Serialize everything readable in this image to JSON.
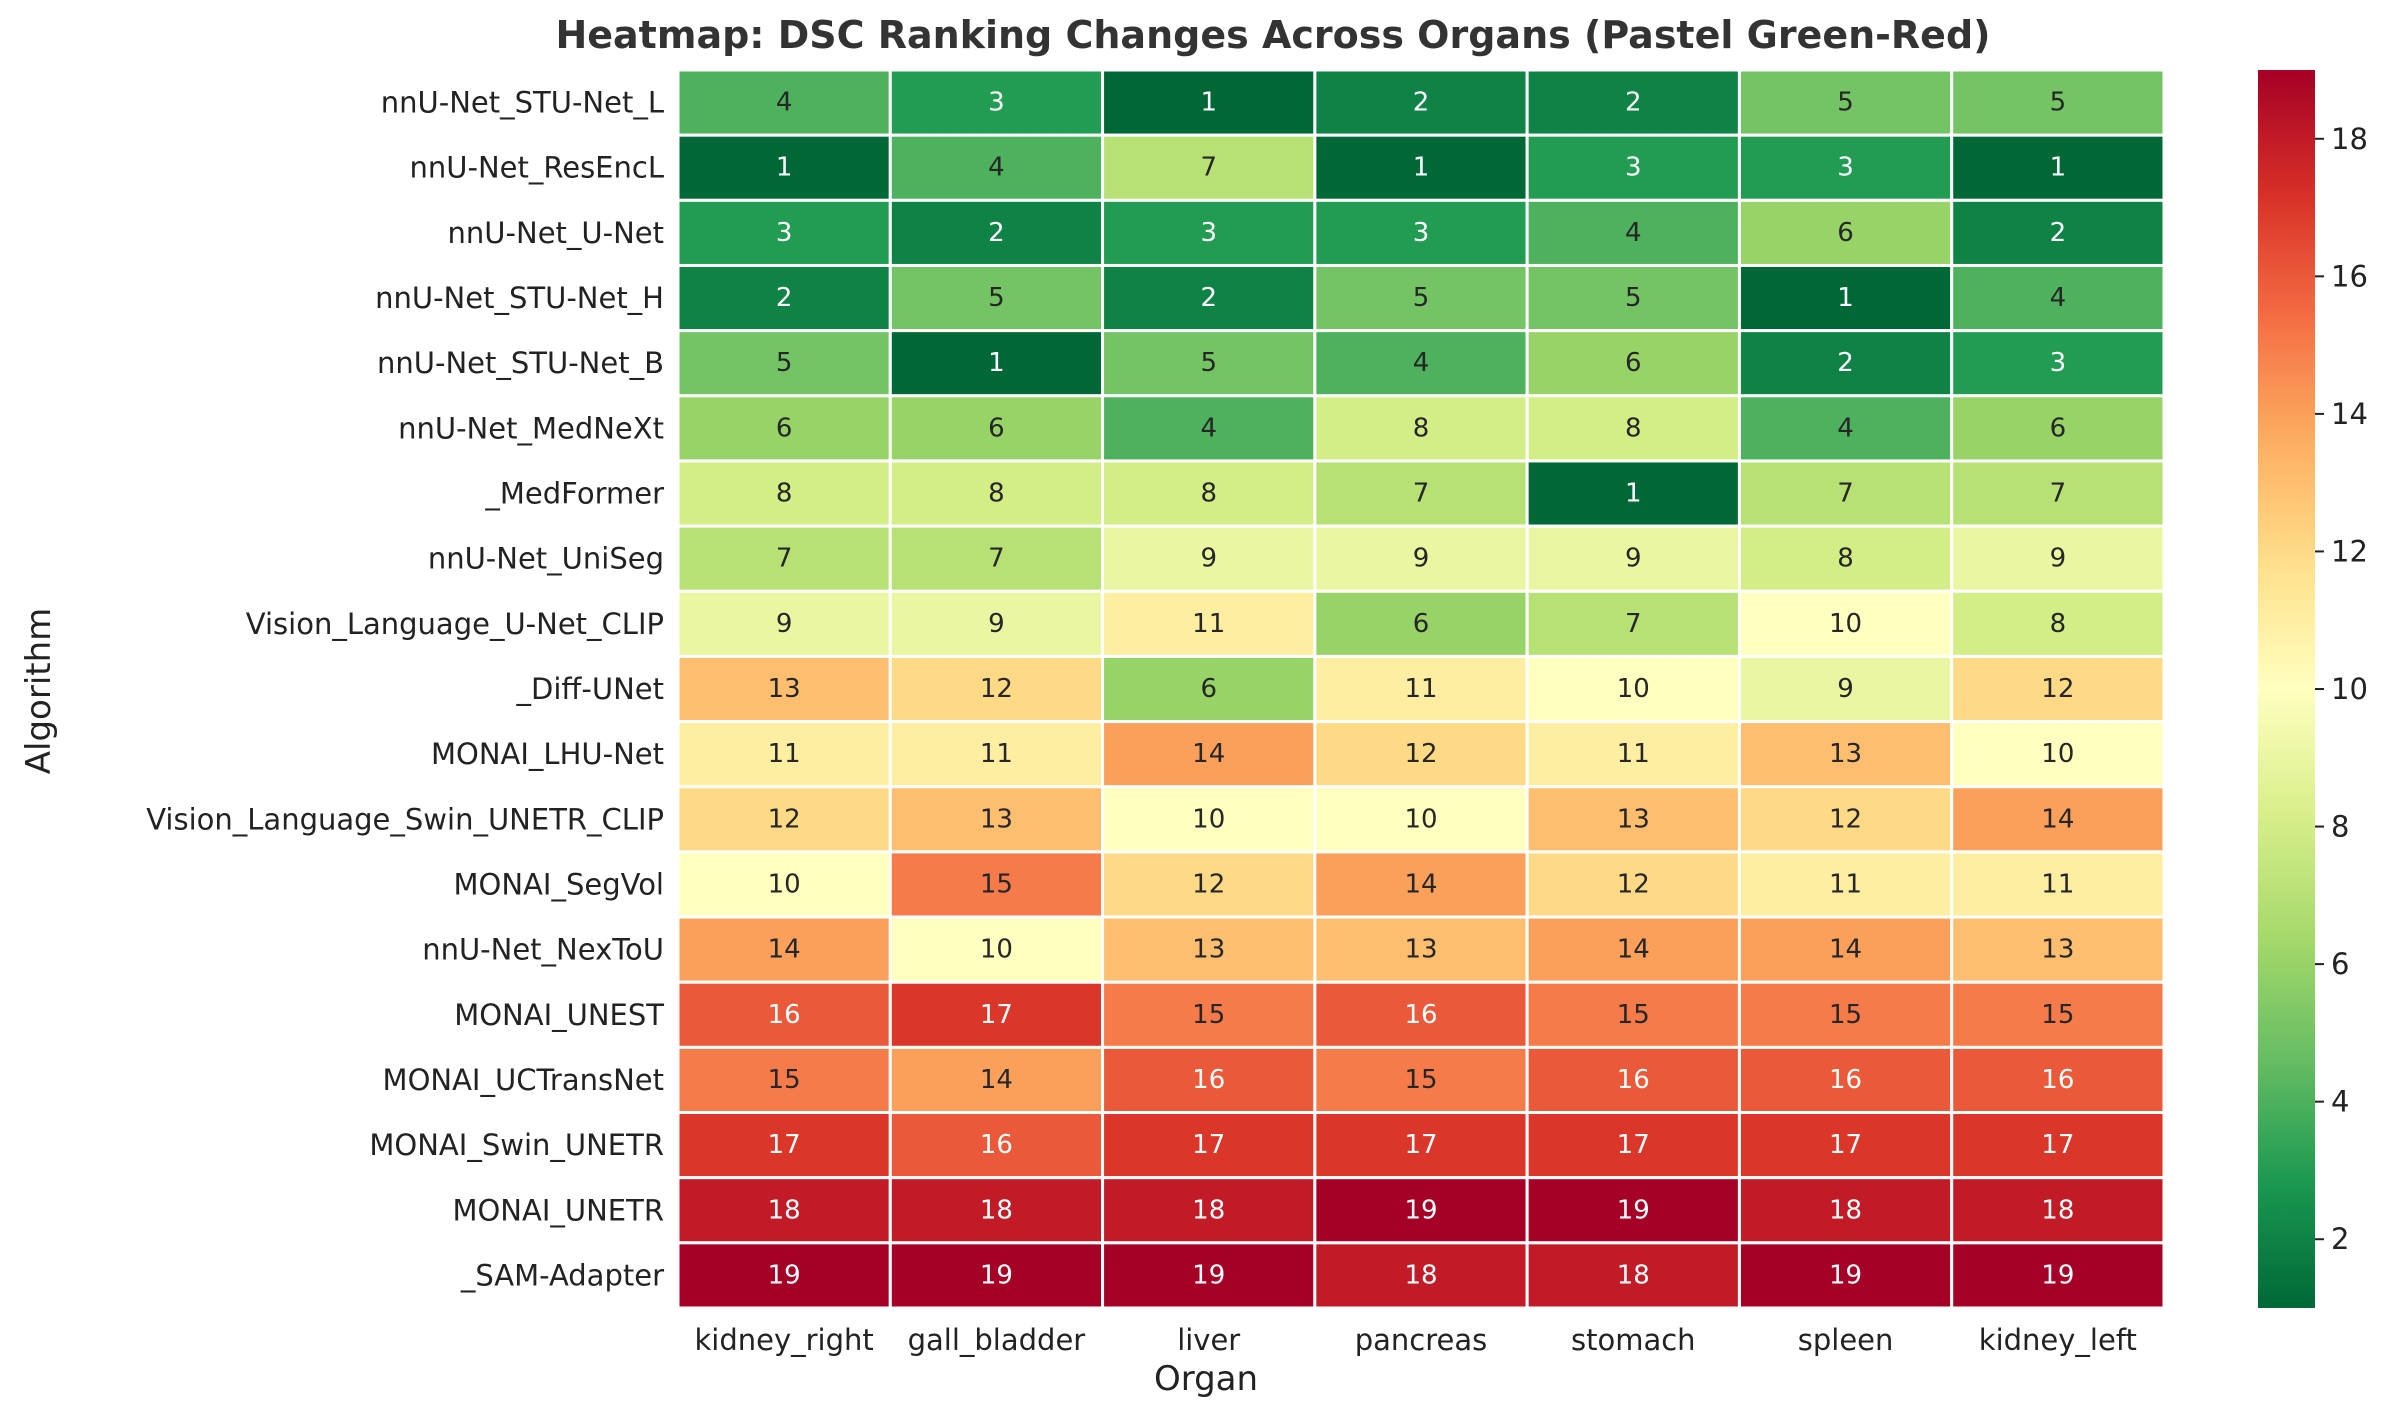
{
  "chart_data": {
    "type": "heatmap",
    "title": "Heatmap: DSC Ranking Changes Across Organs (Pastel Green-Red)",
    "xlabel": "Organ",
    "ylabel": "Algorithm",
    "columns": [
      "kidney_right",
      "gall_bladder",
      "liver",
      "pancreas",
      "stomach",
      "spleen",
      "kidney_left"
    ],
    "rows": [
      "nnU-Net_STU-Net_L",
      "nnU-Net_ResEncL",
      "nnU-Net_U-Net",
      "nnU-Net_STU-Net_H",
      "nnU-Net_STU-Net_B",
      "nnU-Net_MedNeXt",
      "_MedFormer",
      "nnU-Net_UniSeg",
      "Vision_Language_U-Net_CLIP",
      "_Diff-UNet",
      "MONAI_LHU-Net",
      "Vision_Language_Swin_UNETR_CLIP",
      "MONAI_SegVol",
      "nnU-Net_NexToU",
      "MONAI_UNEST",
      "MONAI_UCTransNet",
      "MONAI_Swin_UNETR",
      "MONAI_UNETR",
      "_SAM-Adapter"
    ],
    "values": [
      [
        4,
        3,
        1,
        2,
        2,
        5,
        5
      ],
      [
        1,
        4,
        7,
        1,
        3,
        3,
        1
      ],
      [
        3,
        2,
        3,
        3,
        4,
        6,
        2
      ],
      [
        2,
        5,
        2,
        5,
        5,
        1,
        4
      ],
      [
        5,
        1,
        5,
        4,
        6,
        2,
        3
      ],
      [
        6,
        6,
        4,
        8,
        8,
        4,
        6
      ],
      [
        8,
        8,
        8,
        7,
        1,
        7,
        7
      ],
      [
        7,
        7,
        9,
        9,
        9,
        8,
        9
      ],
      [
        9,
        9,
        11,
        6,
        7,
        10,
        8
      ],
      [
        13,
        12,
        6,
        11,
        10,
        9,
        12
      ],
      [
        11,
        11,
        14,
        12,
        11,
        13,
        10
      ],
      [
        12,
        13,
        10,
        10,
        13,
        12,
        14
      ],
      [
        10,
        15,
        12,
        14,
        12,
        11,
        11
      ],
      [
        14,
        10,
        13,
        13,
        14,
        14,
        13
      ],
      [
        16,
        17,
        15,
        16,
        15,
        15,
        15
      ],
      [
        15,
        14,
        16,
        15,
        16,
        16,
        16
      ],
      [
        17,
        16,
        17,
        17,
        17,
        17,
        17
      ],
      [
        18,
        18,
        18,
        19,
        19,
        18,
        18
      ],
      [
        19,
        19,
        19,
        18,
        18,
        19,
        19
      ]
    ],
    "vmin": 1,
    "vmax": 19,
    "colormap": "RdYlGn_r",
    "colorbar": {
      "ticks": [
        2,
        4,
        6,
        8,
        10,
        12,
        14,
        16,
        18
      ]
    },
    "cell_border_color": "#ffffff"
  }
}
